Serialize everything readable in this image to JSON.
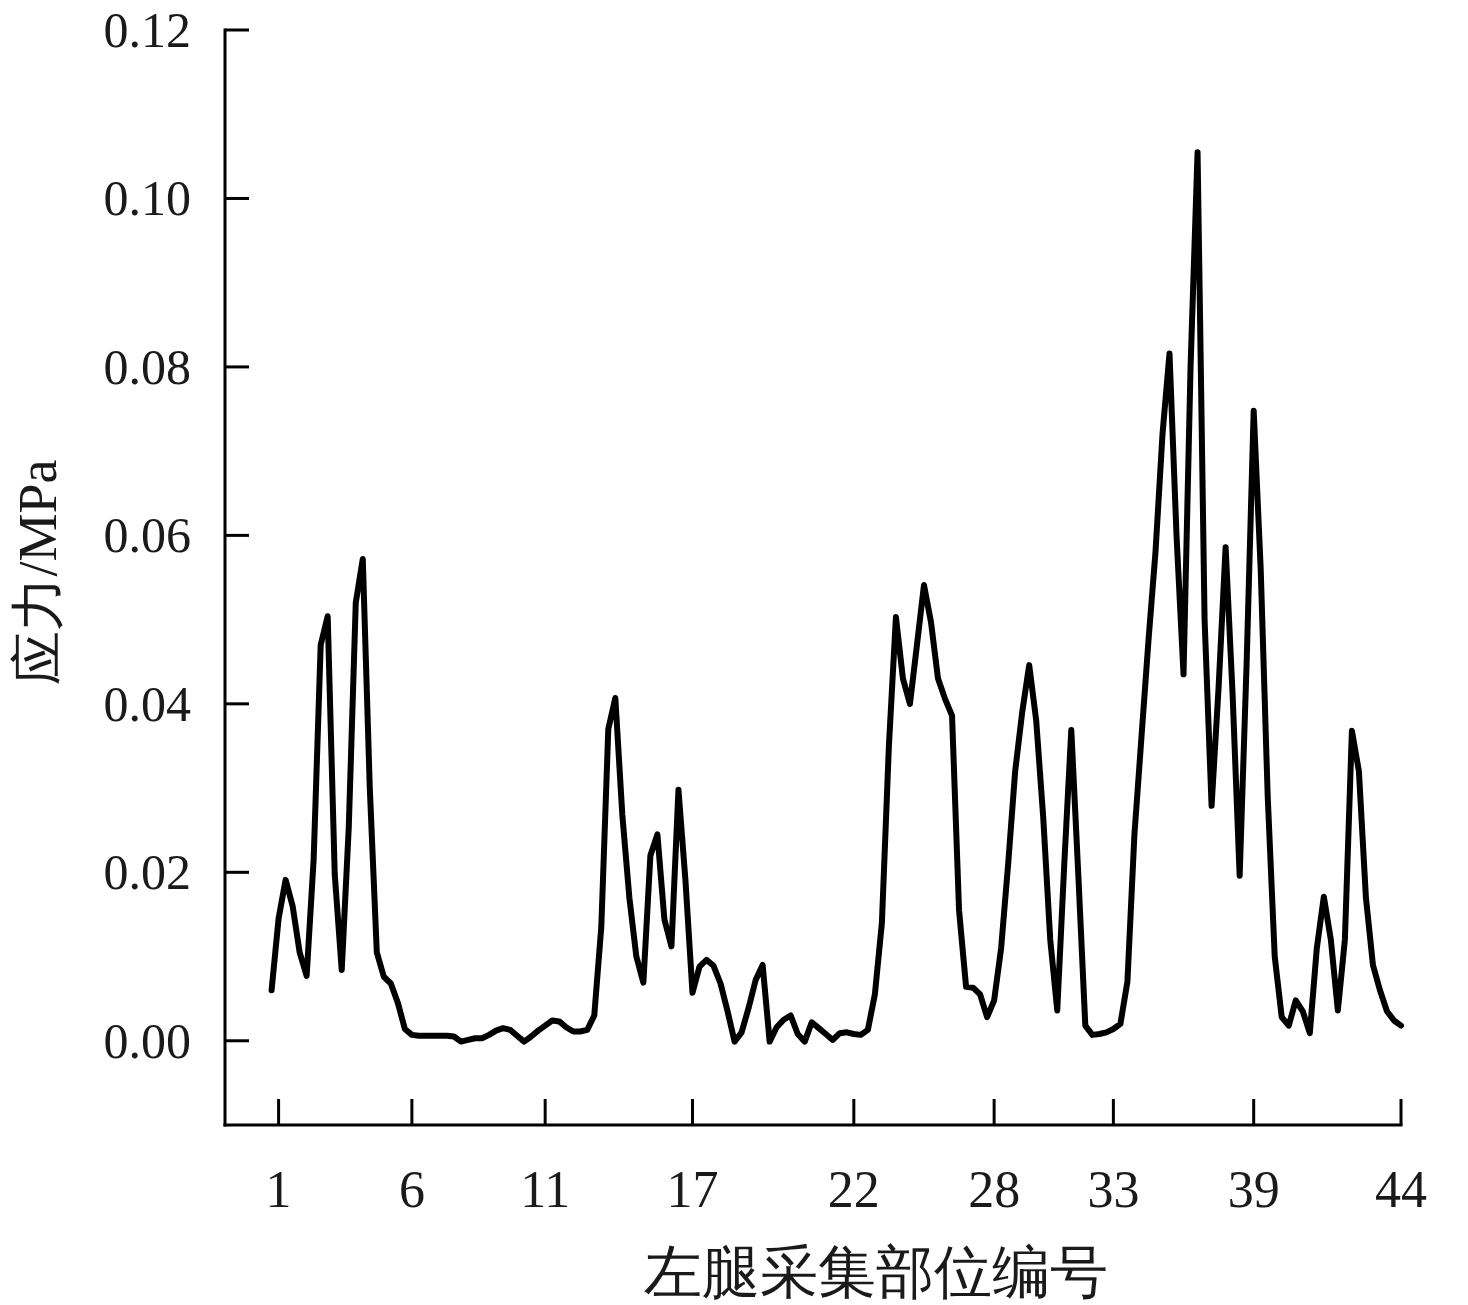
{
  "chart_data": {
    "type": "line",
    "xlabel": "左腿采集部位编号",
    "ylabel": "应力/MPa",
    "categories": [
      null,
      "1",
      null,
      null,
      null,
      null,
      null,
      null,
      null,
      null,
      null,
      null,
      null,
      null,
      null,
      null,
      null,
      null,
      null,
      null,
      "6",
      null,
      null,
      null,
      null,
      null,
      null,
      null,
      null,
      null,
      null,
      null,
      null,
      null,
      null,
      null,
      null,
      null,
      null,
      "11",
      null,
      null,
      null,
      null,
      null,
      null,
      null,
      null,
      null,
      null,
      null,
      null,
      null,
      null,
      null,
      null,
      null,
      null,
      null,
      null,
      "17",
      null,
      null,
      null,
      null,
      null,
      null,
      null,
      null,
      null,
      null,
      null,
      null,
      null,
      null,
      null,
      null,
      null,
      null,
      null,
      null,
      null,
      null,
      "22",
      null,
      null,
      null,
      null,
      null,
      null,
      null,
      null,
      null,
      null,
      null,
      null,
      null,
      null,
      null,
      null,
      null,
      null,
      null,
      "28",
      null,
      null,
      null,
      null,
      null,
      null,
      null,
      null,
      null,
      null,
      null,
      null,
      null,
      null,
      null,
      null,
      "33",
      null,
      null,
      null,
      null,
      null,
      null,
      null,
      null,
      null,
      null,
      null,
      null,
      null,
      null,
      null,
      null,
      null,
      null,
      null,
      "39",
      null,
      null,
      null,
      null,
      null,
      null,
      null,
      null,
      null,
      null,
      null,
      null,
      null,
      null,
      null,
      null,
      null,
      null,
      null,
      null,
      "44"
    ],
    "series": [
      {
        "color": "#000000",
        "values": [
          0.006,
          0.0145,
          0.0191,
          0.016,
          0.0105,
          0.0077,
          0.0216,
          0.047,
          0.0504,
          0.0198,
          0.0084,
          0.0253,
          0.052,
          0.0572,
          0.03,
          0.0105,
          0.0076,
          0.0068,
          0.0045,
          0.0014,
          0.0007,
          0.0006,
          0.0006,
          0.0006,
          0.0006,
          0.0006,
          0.0005,
          -0.0001,
          0.0001,
          0.0003,
          0.0003,
          0.0007,
          0.0012,
          0.0015,
          0.0013,
          0.0006,
          -0.0001,
          0.0005,
          0.0012,
          0.0018,
          0.0024,
          0.0023,
          0.0016,
          0.0011,
          0.0011,
          0.0013,
          0.003,
          0.0135,
          0.037,
          0.0407,
          0.0268,
          0.017,
          0.01,
          0.0069,
          0.022,
          0.0245,
          0.0144,
          0.0112,
          0.0298,
          0.019,
          0.0057,
          0.0088,
          0.0096,
          0.0089,
          0.0068,
          0.0035,
          -0.0001,
          0.001,
          0.0039,
          0.0072,
          0.009,
          -0.0001,
          0.0016,
          0.0025,
          0.003,
          0.0008,
          -0.0001,
          0.0022,
          0.0015,
          0.0008,
          0.0001,
          0.0009,
          0.001,
          0.0008,
          0.0007,
          0.0013,
          0.0055,
          0.014,
          0.035,
          0.0503,
          0.043,
          0.04,
          0.047,
          0.0541,
          0.0497,
          0.043,
          0.0406,
          0.0386,
          0.0155,
          0.0064,
          0.0063,
          0.0055,
          0.0028,
          0.0048,
          0.011,
          0.021,
          0.032,
          0.039,
          0.0446,
          0.038,
          0.0265,
          0.012,
          0.0036,
          0.021,
          0.0369,
          0.0197,
          0.0018,
          0.0007,
          0.0008,
          0.001,
          0.0014,
          0.002,
          0.007,
          0.0245,
          0.036,
          0.0475,
          0.058,
          0.072,
          0.0816,
          0.06,
          0.0435,
          0.08,
          0.1055,
          0.05,
          0.0279,
          0.042,
          0.0586,
          0.041,
          0.0196,
          0.045,
          0.0748,
          0.056,
          0.029,
          0.01,
          0.0028,
          0.0018,
          0.0048,
          0.0035,
          0.0009,
          0.011,
          0.0171,
          0.012,
          0.0036,
          0.012,
          0.0368,
          0.032,
          0.017,
          0.009,
          0.006,
          0.0035,
          0.0024,
          0.0018
        ]
      }
    ],
    "ylim": [
      -0.01,
      0.12
    ],
    "yticks": [
      {
        "value": 0,
        "label": "0.00"
      },
      {
        "value": 0.02,
        "label": "0.02"
      },
      {
        "value": 0.04,
        "label": "0.04"
      },
      {
        "value": 0.06,
        "label": "0.06"
      },
      {
        "value": 0.08,
        "label": "0.08"
      },
      {
        "value": 0.1,
        "label": "0.10"
      },
      {
        "value": 0.12,
        "label": "0.12"
      }
    ],
    "line_style": "solid"
  }
}
